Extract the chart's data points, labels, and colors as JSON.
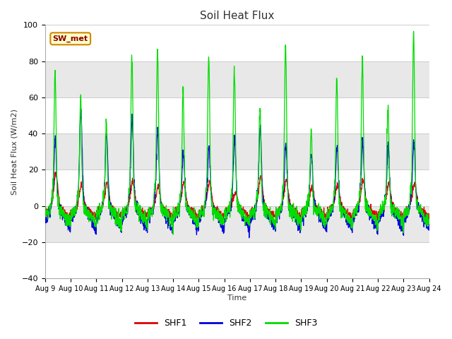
{
  "title": "Soil Heat Flux",
  "ylabel": "Soil Heat Flux (W/m2)",
  "xlabel": "Time",
  "xlim_start": 9,
  "xlim_end": 24,
  "ylim": [
    -40,
    100
  ],
  "yticks": [
    -40,
    -20,
    0,
    20,
    40,
    60,
    80,
    100
  ],
  "fig_bg_color": "#ffffff",
  "plot_bg_color": "#e8e8e8",
  "band_color": "#d8d8d8",
  "shf1_color": "#dd0000",
  "shf2_color": "#0000dd",
  "shf3_color": "#00dd00",
  "legend_label1": "SHF1",
  "legend_label2": "SHF2",
  "legend_label3": "SHF3",
  "station_label": "SW_met",
  "n_days": 15,
  "points_per_day": 144
}
